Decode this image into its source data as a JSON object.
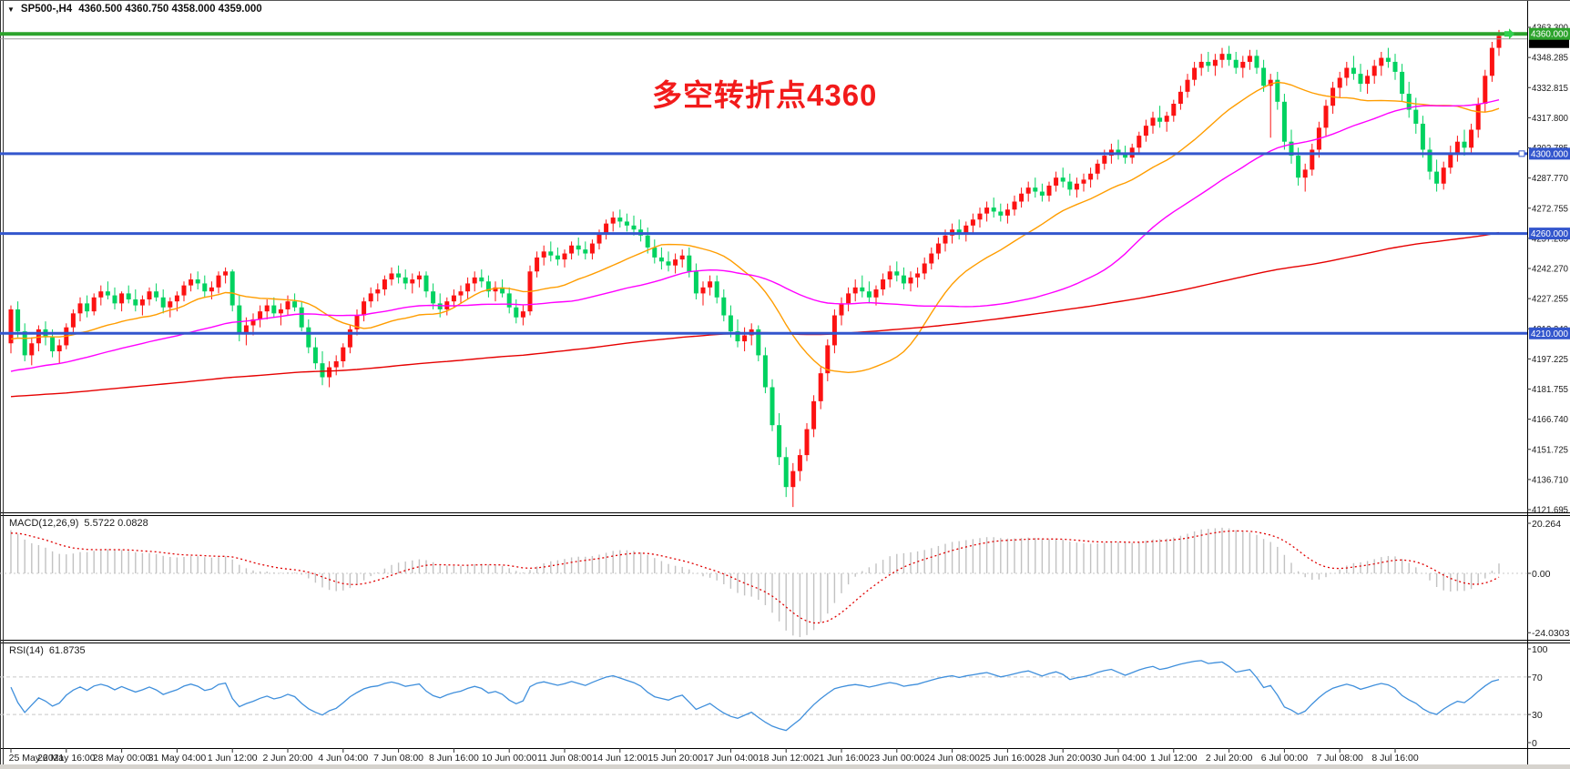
{
  "title_bar": {
    "dropdown_icon": "▼",
    "symbol_period": "SP500-,H4",
    "ohlc_values": "4360.500 4360.750 4358.000 4359.000"
  },
  "annotation": {
    "text": "多空转折点4360",
    "color": "#f21b1b"
  },
  "price_axis": {
    "labels": [
      "4363.300",
      "4348.285",
      "4332.815",
      "4317.800",
      "4302.785",
      "4287.770",
      "4272.755",
      "4257.285",
      "4242.270",
      "4227.255",
      "4212.240",
      "4197.225",
      "4181.755",
      "4166.740",
      "4151.725",
      "4136.710",
      "4121.695"
    ]
  },
  "hlines": [
    {
      "price": 4360,
      "label": "4360.000",
      "color": "#2ca32c",
      "width": 4
    },
    {
      "price": 4300,
      "label": "4300.000",
      "color": "#3356cd",
      "width": 3
    },
    {
      "price": 4260,
      "label": "4260.000",
      "color": "#3356cd",
      "width": 3
    },
    {
      "price": 4210,
      "label": "4210.000",
      "color": "#3356cd",
      "width": 3
    }
  ],
  "bid_line": {
    "price": 4357.5,
    "color": "#9a9a9a"
  },
  "macd": {
    "label": "MACD(12,26,9)",
    "values_text": "5.5722 0.0828",
    "fast": 12,
    "slow": 26,
    "signal": 9,
    "axis": [
      {
        "label": "20.264",
        "value": 20.264
      },
      {
        "label": "0.00",
        "value": 0
      },
      {
        "label": "-24.0303",
        "value": -24.0303
      }
    ],
    "seed": {
      "fast": 4212,
      "slow": 4194,
      "signal": 16
    },
    "hist_color": "#c2c2c2",
    "signal_color": "#e00000",
    "zero_color": "#c8c8c8"
  },
  "rsi": {
    "label": "RSI(14)",
    "value_text": "61.8735",
    "period": 14,
    "axis": [
      {
        "label": "100",
        "value": 100
      },
      {
        "label": "70",
        "value": 70
      },
      {
        "label": "30",
        "value": 30
      },
      {
        "label": "0",
        "value": 0
      }
    ],
    "levels": [
      70,
      30
    ],
    "seed": {
      "gain": 1.3,
      "loss": 0.9
    },
    "line_color": "#3f8fdc",
    "level_color": "#c6c6c6"
  },
  "time_axis": {
    "labels": [
      "25 May 2021",
      "26 May 16:00",
      "28 May 00:00",
      "31 May 04:00",
      "1 Jun 12:00",
      "2 Jun 20:00",
      "4 Jun 04:00",
      "7 Jun 08:00",
      "8 Jun 16:00",
      "10 Jun 00:00",
      "11 Jun 08:00",
      "14 Jun 12:00",
      "15 Jun 20:00",
      "17 Jun 04:00",
      "18 Jun 12:00",
      "21 Jun 16:00",
      "23 Jun 00:00",
      "24 Jun 08:00",
      "25 Jun 16:00",
      "28 Jun 20:00",
      "30 Jun 04:00",
      "1 Jul 12:00",
      "2 Jul 20:00",
      "6 Jul 00:00",
      "7 Jul 08:00",
      "8 Jul 16:00"
    ]
  },
  "chart_data": {
    "type": "candlestick",
    "symbol": "SP500-",
    "timeframe": "H4",
    "title": "多空转折点4360",
    "ylim": [
      4121.695,
      4363.3
    ],
    "colors": {
      "up": "#fc1212",
      "down": "#00d260",
      "marker": "#2fd14e"
    },
    "moving_averages": [
      {
        "period": 20,
        "color": "#ff9d00",
        "prehistory_from": 4200,
        "prehistory_to": 4212
      },
      {
        "period": 50,
        "color": "#ff00ff",
        "prehistory_from": 4175,
        "prehistory_to": 4205
      },
      {
        "period": 200,
        "color": "#e60000",
        "prehistory_from": 4160,
        "prehistory_to": 4196
      }
    ],
    "ohlc": [
      [
        4205,
        4224,
        4200,
        4222
      ],
      [
        4222,
        4226,
        4208,
        4211
      ],
      [
        4211,
        4215,
        4196,
        4199
      ],
      [
        4199,
        4208,
        4194,
        4205
      ],
      [
        4205,
        4214,
        4201,
        4212
      ],
      [
        4212,
        4216,
        4204,
        4208
      ],
      [
        4208,
        4212,
        4198,
        4201
      ],
      [
        4201,
        4207,
        4195,
        4204
      ],
      [
        4204,
        4215,
        4202,
        4213
      ],
      [
        4213,
        4222,
        4210,
        4220
      ],
      [
        4220,
        4228,
        4216,
        4225
      ],
      [
        4225,
        4229,
        4218,
        4221
      ],
      [
        4221,
        4230,
        4219,
        4228
      ],
      [
        4228,
        4234,
        4224,
        4231
      ],
      [
        4231,
        4236,
        4227,
        4229
      ],
      [
        4229,
        4233,
        4222,
        4225
      ],
      [
        4225,
        4231,
        4221,
        4230
      ],
      [
        4230,
        4234,
        4225,
        4227
      ],
      [
        4227,
        4232,
        4221,
        4224
      ],
      [
        4224,
        4229,
        4219,
        4227
      ],
      [
        4227,
        4233,
        4224,
        4231
      ],
      [
        4231,
        4235,
        4226,
        4228
      ],
      [
        4228,
        4232,
        4220,
        4223
      ],
      [
        4223,
        4228,
        4218,
        4226
      ],
      [
        4226,
        4231,
        4221,
        4229
      ],
      [
        4229,
        4236,
        4226,
        4234
      ],
      [
        4234,
        4240,
        4231,
        4237
      ],
      [
        4237,
        4241,
        4232,
        4235
      ],
      [
        4235,
        4239,
        4228,
        4231
      ],
      [
        4231,
        4236,
        4227,
        4233
      ],
      [
        4233,
        4241,
        4230,
        4239
      ],
      [
        4239,
        4243,
        4235,
        4241
      ],
      [
        4241,
        4242,
        4221,
        4224
      ],
      [
        4224,
        4229,
        4206,
        4210
      ],
      [
        4210,
        4218,
        4204,
        4214
      ],
      [
        4214,
        4220,
        4209,
        4217
      ],
      [
        4217,
        4224,
        4213,
        4221
      ],
      [
        4221,
        4227,
        4217,
        4224
      ],
      [
        4224,
        4228,
        4218,
        4220
      ],
      [
        4220,
        4225,
        4214,
        4222
      ],
      [
        4222,
        4229,
        4219,
        4226
      ],
      [
        4226,
        4230,
        4221,
        4223
      ],
      [
        4223,
        4226,
        4211,
        4213
      ],
      [
        4213,
        4217,
        4200,
        4203
      ],
      [
        4203,
        4208,
        4192,
        4195
      ],
      [
        4195,
        4201,
        4184,
        4188
      ],
      [
        4188,
        4196,
        4183,
        4193
      ],
      [
        4193,
        4199,
        4189,
        4196
      ],
      [
        4196,
        4205,
        4193,
        4203
      ],
      [
        4203,
        4214,
        4200,
        4212
      ],
      [
        4212,
        4222,
        4209,
        4219
      ],
      [
        4219,
        4228,
        4216,
        4226
      ],
      [
        4226,
        4233,
        4223,
        4230
      ],
      [
        4230,
        4235,
        4226,
        4232
      ],
      [
        4232,
        4239,
        4229,
        4237
      ],
      [
        4237,
        4243,
        4234,
        4240
      ],
      [
        4240,
        4244,
        4235,
        4238
      ],
      [
        4238,
        4242,
        4232,
        4235
      ],
      [
        4235,
        4240,
        4230,
        4237
      ],
      [
        4237,
        4241,
        4233,
        4239
      ],
      [
        4239,
        4241,
        4228,
        4231
      ],
      [
        4231,
        4235,
        4222,
        4225
      ],
      [
        4225,
        4230,
        4218,
        4222
      ],
      [
        4222,
        4228,
        4219,
        4226
      ],
      [
        4226,
        4232,
        4223,
        4229
      ],
      [
        4229,
        4234,
        4225,
        4231
      ],
      [
        4231,
        4238,
        4227,
        4235
      ],
      [
        4235,
        4241,
        4231,
        4238
      ],
      [
        4238,
        4242,
        4233,
        4236
      ],
      [
        4236,
        4239,
        4228,
        4231
      ],
      [
        4231,
        4236,
        4226,
        4233
      ],
      [
        4233,
        4237,
        4228,
        4230
      ],
      [
        4230,
        4233,
        4220,
        4223
      ],
      [
        4223,
        4227,
        4215,
        4218
      ],
      [
        4218,
        4224,
        4214,
        4221
      ],
      [
        4221,
        4244,
        4219,
        4241
      ],
      [
        4241,
        4251,
        4238,
        4248
      ],
      [
        4248,
        4254,
        4244,
        4251
      ],
      [
        4251,
        4256,
        4246,
        4249
      ],
      [
        4249,
        4253,
        4244,
        4247
      ],
      [
        4247,
        4252,
        4243,
        4250
      ],
      [
        4250,
        4256,
        4247,
        4254
      ],
      [
        4254,
        4258,
        4249,
        4252
      ],
      [
        4252,
        4256,
        4247,
        4250
      ],
      [
        4250,
        4257,
        4247,
        4255
      ],
      [
        4255,
        4262,
        4252,
        4260
      ],
      [
        4260,
        4267,
        4257,
        4265
      ],
      [
        4265,
        4271,
        4261,
        4268
      ],
      [
        4268,
        4272,
        4263,
        4266
      ],
      [
        4266,
        4270,
        4261,
        4264
      ],
      [
        4264,
        4269,
        4259,
        4262
      ],
      [
        4262,
        4267,
        4256,
        4259
      ],
      [
        4259,
        4263,
        4250,
        4253
      ],
      [
        4253,
        4257,
        4245,
        4248
      ],
      [
        4248,
        4253,
        4242,
        4246
      ],
      [
        4246,
        4251,
        4241,
        4244
      ],
      [
        4244,
        4250,
        4240,
        4247
      ],
      [
        4247,
        4252,
        4243,
        4249
      ],
      [
        4249,
        4253,
        4238,
        4241
      ],
      [
        4241,
        4245,
        4227,
        4230
      ],
      [
        4230,
        4236,
        4224,
        4233
      ],
      [
        4233,
        4239,
        4229,
        4236
      ],
      [
        4236,
        4239,
        4225,
        4228
      ],
      [
        4228,
        4232,
        4216,
        4219
      ],
      [
        4219,
        4224,
        4208,
        4211
      ],
      [
        4211,
        4217,
        4203,
        4206
      ],
      [
        4206,
        4213,
        4201,
        4209
      ],
      [
        4209,
        4215,
        4204,
        4212
      ],
      [
        4212,
        4214,
        4196,
        4199
      ],
      [
        4199,
        4203,
        4180,
        4183
      ],
      [
        4183,
        4187,
        4161,
        4164
      ],
      [
        4164,
        4170,
        4144,
        4148
      ],
      [
        4148,
        4153,
        4128,
        4133
      ],
      [
        4133,
        4145,
        4123,
        4141
      ],
      [
        4141,
        4152,
        4136,
        4149
      ],
      [
        4149,
        4165,
        4146,
        4162
      ],
      [
        4162,
        4179,
        4158,
        4176
      ],
      [
        4176,
        4193,
        4172,
        4190
      ],
      [
        4190,
        4207,
        4186,
        4204
      ],
      [
        4204,
        4222,
        4200,
        4219
      ],
      [
        4219,
        4228,
        4214,
        4225
      ],
      [
        4225,
        4233,
        4221,
        4230
      ],
      [
        4230,
        4237,
        4226,
        4233
      ],
      [
        4233,
        4239,
        4228,
        4231
      ],
      [
        4231,
        4236,
        4225,
        4228
      ],
      [
        4228,
        4234,
        4224,
        4232
      ],
      [
        4232,
        4240,
        4229,
        4237
      ],
      [
        4237,
        4244,
        4233,
        4241
      ],
      [
        4241,
        4246,
        4236,
        4239
      ],
      [
        4239,
        4243,
        4232,
        4235
      ],
      [
        4235,
        4241,
        4231,
        4238
      ],
      [
        4238,
        4243,
        4233,
        4240
      ],
      [
        4240,
        4248,
        4237,
        4245
      ],
      [
        4245,
        4253,
        4242,
        4250
      ],
      [
        4250,
        4258,
        4247,
        4255
      ],
      [
        4255,
        4262,
        4251,
        4259
      ],
      [
        4259,
        4265,
        4255,
        4262
      ],
      [
        4262,
        4267,
        4257,
        4260
      ],
      [
        4260,
        4266,
        4256,
        4264
      ],
      [
        4264,
        4270,
        4260,
        4267
      ],
      [
        4267,
        4273,
        4263,
        4270
      ],
      [
        4270,
        4276,
        4266,
        4273
      ],
      [
        4273,
        4278,
        4268,
        4271
      ],
      [
        4271,
        4275,
        4266,
        4269
      ],
      [
        4269,
        4275,
        4265,
        4272
      ],
      [
        4272,
        4279,
        4269,
        4276
      ],
      [
        4276,
        4283,
        4273,
        4280
      ],
      [
        4280,
        4286,
        4276,
        4283
      ],
      [
        4283,
        4288,
        4278,
        4281
      ],
      [
        4281,
        4285,
        4276,
        4279
      ],
      [
        4279,
        4286,
        4276,
        4284
      ],
      [
        4284,
        4291,
        4281,
        4288
      ],
      [
        4288,
        4293,
        4283,
        4286
      ],
      [
        4286,
        4290,
        4279,
        4282
      ],
      [
        4282,
        4288,
        4278,
        4285
      ],
      [
        4285,
        4290,
        4281,
        4287
      ],
      [
        4287,
        4293,
        4283,
        4290
      ],
      [
        4290,
        4297,
        4287,
        4295
      ],
      [
        4295,
        4302,
        4292,
        4299
      ],
      [
        4299,
        4305,
        4295,
        4302
      ],
      [
        4302,
        4307,
        4297,
        4300
      ],
      [
        4300,
        4304,
        4295,
        4298
      ],
      [
        4298,
        4305,
        4295,
        4303
      ],
      [
        4303,
        4311,
        4300,
        4309
      ],
      [
        4309,
        4317,
        4306,
        4314
      ],
      [
        4314,
        4321,
        4310,
        4318
      ],
      [
        4318,
        4324,
        4313,
        4316
      ],
      [
        4316,
        4321,
        4311,
        4319
      ],
      [
        4319,
        4327,
        4316,
        4325
      ],
      [
        4325,
        4334,
        4322,
        4331
      ],
      [
        4331,
        4340,
        4328,
        4337
      ],
      [
        4337,
        4346,
        4334,
        4343
      ],
      [
        4343,
        4350,
        4339,
        4346
      ],
      [
        4346,
        4351,
        4341,
        4344
      ],
      [
        4344,
        4350,
        4339,
        4347
      ],
      [
        4347,
        4353,
        4343,
        4350
      ],
      [
        4350,
        4354,
        4344,
        4347
      ],
      [
        4347,
        4351,
        4340,
        4343
      ],
      [
        4343,
        4349,
        4338,
        4346
      ],
      [
        4346,
        4352,
        4342,
        4349
      ],
      [
        4349,
        4352,
        4340,
        4343
      ],
      [
        4343,
        4347,
        4331,
        4334
      ],
      [
        4334,
        4340,
        4308,
        4337
      ],
      [
        4337,
        4341,
        4322,
        4326
      ],
      [
        4326,
        4330,
        4302,
        4306
      ],
      [
        4306,
        4312,
        4295,
        4299
      ],
      [
        4299,
        4303,
        4284,
        4288
      ],
      [
        4288,
        4295,
        4281,
        4292
      ],
      [
        4292,
        4305,
        4289,
        4302
      ],
      [
        4302,
        4316,
        4298,
        4313
      ],
      [
        4313,
        4327,
        4309,
        4324
      ],
      [
        4324,
        4336,
        4320,
        4333
      ],
      [
        4333,
        4341,
        4328,
        4338
      ],
      [
        4338,
        4346,
        4334,
        4343
      ],
      [
        4343,
        4349,
        4337,
        4340
      ],
      [
        4340,
        4345,
        4331,
        4335
      ],
      [
        4335,
        4342,
        4330,
        4339
      ],
      [
        4339,
        4347,
        4335,
        4344
      ],
      [
        4344,
        4351,
        4339,
        4348
      ],
      [
        4348,
        4353,
        4343,
        4346
      ],
      [
        4346,
        4350,
        4337,
        4341
      ],
      [
        4341,
        4345,
        4326,
        4330
      ],
      [
        4330,
        4336,
        4318,
        4322
      ],
      [
        4322,
        4328,
        4310,
        4315
      ],
      [
        4315,
        4319,
        4298,
        4302
      ],
      [
        4302,
        4308,
        4287,
        4291
      ],
      [
        4291,
        4297,
        4281,
        4285
      ],
      [
        4285,
        4296,
        4282,
        4293
      ],
      [
        4293,
        4304,
        4290,
        4300
      ],
      [
        4300,
        4309,
        4296,
        4306
      ],
      [
        4306,
        4312,
        4299,
        4303
      ],
      [
        4303,
        4315,
        4300,
        4312
      ],
      [
        4312,
        4328,
        4308,
        4325
      ],
      [
        4325,
        4342,
        4321,
        4339
      ],
      [
        4339,
        4356,
        4336,
        4353
      ],
      [
        4353,
        4362,
        4349,
        4359
      ]
    ]
  }
}
